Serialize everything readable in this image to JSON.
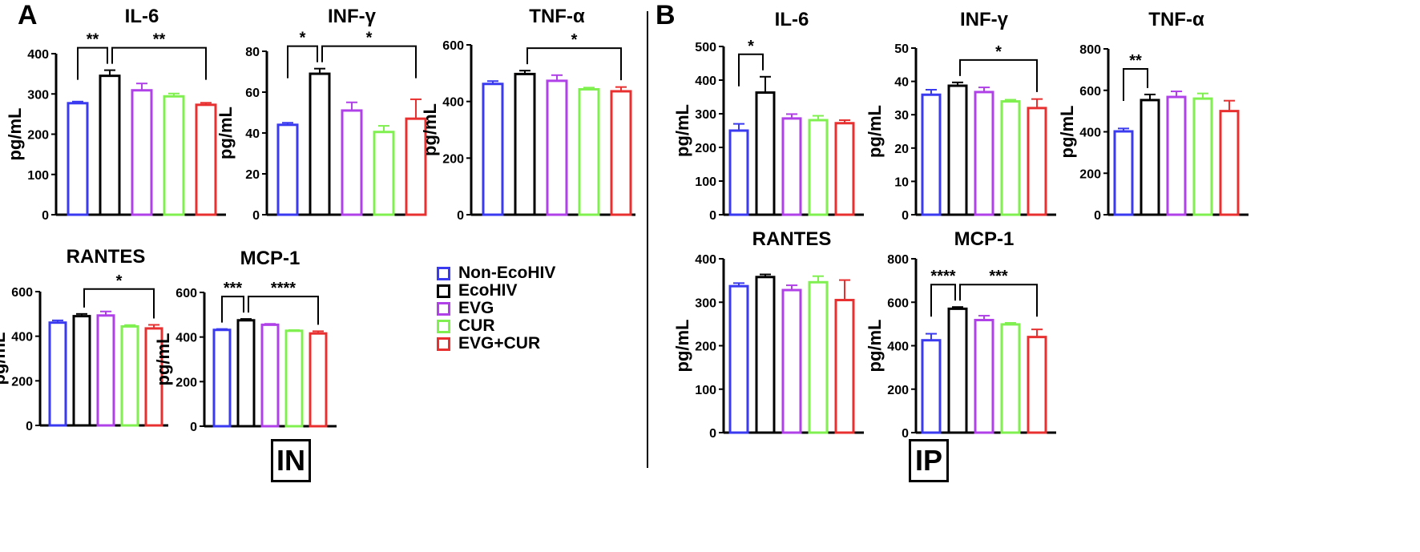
{
  "panel_labels": {
    "a": "A",
    "b": "B"
  },
  "region_labels": {
    "a": "IN",
    "b": "IP"
  },
  "groups": [
    "Non-EcoHIV",
    "EcoHIV",
    "EVG",
    "CUR",
    "EVG+CUR"
  ],
  "colors": [
    "#3a3af0",
    "#000000",
    "#b040e8",
    "#80f050",
    "#e83030"
  ],
  "chart_data": [
    {
      "type": "bar",
      "panel": "A",
      "title": "IL-6",
      "ylabel": "pg/mL",
      "ylim": [
        0,
        400
      ],
      "yticks": [
        0,
        100,
        200,
        300,
        400
      ],
      "categories": [
        "Non-EcoHIV",
        "EcoHIV",
        "EVG",
        "CUR",
        "EVG+CUR"
      ],
      "values": [
        277,
        345,
        309,
        294,
        273
      ],
      "errors": [
        4,
        14,
        17,
        7,
        5
      ],
      "significance": [
        {
          "from": 0,
          "to": 1,
          "label": "**"
        },
        {
          "from": 1,
          "to": 4,
          "label": "**"
        }
      ]
    },
    {
      "type": "bar",
      "panel": "A",
      "title": "INF-γ",
      "ylabel": "pg/mL",
      "ylim": [
        0,
        80
      ],
      "yticks": [
        0,
        20,
        40,
        60,
        80
      ],
      "categories": [
        "Non-EcoHIV",
        "EcoHIV",
        "EVG",
        "CUR",
        "EVG+CUR"
      ],
      "values": [
        44,
        69,
        51,
        40.5,
        47
      ],
      "errors": [
        1,
        2.5,
        4,
        3,
        9.5
      ],
      "significance": [
        {
          "from": 0,
          "to": 1,
          "label": "*"
        },
        {
          "from": 1,
          "to": 4,
          "label": "*"
        }
      ]
    },
    {
      "type": "bar",
      "panel": "A",
      "title": "TNF-α",
      "ylabel": "pg/mL",
      "ylim": [
        0,
        600
      ],
      "yticks": [
        0,
        200,
        400,
        600
      ],
      "categories": [
        "Non-EcoHIV",
        "EcoHIV",
        "EVG",
        "CUR",
        "EVG+CUR"
      ],
      "values": [
        462,
        497,
        473,
        443,
        436
      ],
      "errors": [
        10,
        12,
        20,
        6,
        15
      ],
      "significance": [
        {
          "from": 1,
          "to": 4,
          "label": "*"
        }
      ]
    },
    {
      "type": "bar",
      "panel": "A",
      "title": "RANTES",
      "ylabel": "pg/mL",
      "ylim": [
        0,
        600
      ],
      "yticks": [
        0,
        200,
        400,
        600
      ],
      "categories": [
        "Non-EcoHIV",
        "EcoHIV",
        "EVG",
        "CUR",
        "EVG+CUR"
      ],
      "values": [
        461,
        490,
        493,
        444,
        435
      ],
      "errors": [
        10,
        10,
        18,
        6,
        16
      ],
      "significance": [
        {
          "from": 1,
          "to": 4,
          "label": "*"
        }
      ]
    },
    {
      "type": "bar",
      "panel": "A",
      "title": "MCP-1",
      "ylabel": "pg/mL",
      "ylim": [
        0,
        600
      ],
      "yticks": [
        0,
        200,
        400,
        600
      ],
      "categories": [
        "Non-EcoHIV",
        "EcoHIV",
        "EVG",
        "CUR",
        "EVG+CUR"
      ],
      "values": [
        432,
        475,
        455,
        428,
        416
      ],
      "errors": [
        4,
        6,
        4,
        3,
        10
      ],
      "significance": [
        {
          "from": 0,
          "to": 1,
          "label": "***"
        },
        {
          "from": 1,
          "to": 4,
          "label": "****"
        }
      ]
    },
    {
      "type": "bar",
      "panel": "B",
      "title": "IL-6",
      "ylabel": "pg/mL",
      "ylim": [
        0,
        500
      ],
      "yticks": [
        0,
        100,
        200,
        300,
        400,
        500
      ],
      "categories": [
        "Non-EcoHIV",
        "EcoHIV",
        "EVG",
        "CUR",
        "EVG+CUR"
      ],
      "values": [
        250,
        363,
        286,
        281,
        272
      ],
      "errors": [
        20,
        47,
        13,
        13,
        9
      ],
      "significance": [
        {
          "from": 0,
          "to": 1,
          "label": "*"
        }
      ]
    },
    {
      "type": "bar",
      "panel": "B",
      "title": "INF-γ",
      "ylabel": "pg/mL",
      "ylim": [
        0,
        50
      ],
      "yticks": [
        0,
        10,
        20,
        30,
        40,
        50
      ],
      "categories": [
        "Non-EcoHIV",
        "EcoHIV",
        "EVG",
        "CUR",
        "EVG+CUR"
      ],
      "values": [
        36,
        38.7,
        36.8,
        34,
        32
      ],
      "errors": [
        1.5,
        1,
        1.4,
        0.5,
        2.7
      ],
      "significance": [
        {
          "from": 1,
          "to": 4,
          "label": "*"
        }
      ]
    },
    {
      "type": "bar",
      "panel": "B",
      "title": "TNF-α",
      "ylabel": "pg/mL",
      "ylim": [
        0,
        800
      ],
      "yticks": [
        0,
        200,
        400,
        600,
        800
      ],
      "categories": [
        "Non-EcoHIV",
        "EcoHIV",
        "EVG",
        "CUR",
        "EVG+CUR"
      ],
      "values": [
        402,
        553,
        568,
        560,
        500
      ],
      "errors": [
        14,
        27,
        27,
        25,
        50
      ],
      "significance": [
        {
          "from": 0,
          "to": 1,
          "label": "**"
        }
      ]
    },
    {
      "type": "bar",
      "panel": "B",
      "title": "RANTES",
      "ylabel": "pg/mL",
      "ylim": [
        0,
        400
      ],
      "yticks": [
        0,
        100,
        200,
        300,
        400
      ],
      "categories": [
        "Non-EcoHIV",
        "EcoHIV",
        "EVG",
        "CUR",
        "EVG+CUR"
      ],
      "values": [
        337,
        358,
        328,
        346,
        305
      ],
      "errors": [
        7,
        6,
        11,
        14,
        46
      ],
      "significance": []
    },
    {
      "type": "bar",
      "panel": "B",
      "title": "MCP-1",
      "ylabel": "pg/mL",
      "ylim": [
        0,
        800
      ],
      "yticks": [
        0,
        200,
        400,
        600,
        800
      ],
      "categories": [
        "Non-EcoHIV",
        "EcoHIV",
        "EVG",
        "CUR",
        "EVG+CUR"
      ],
      "values": [
        425,
        570,
        518,
        498,
        440
      ],
      "errors": [
        30,
        8,
        20,
        7,
        35
      ],
      "significance": [
        {
          "from": 0,
          "to": 1,
          "label": "****"
        },
        {
          "from": 1,
          "to": 4,
          "label": "***"
        }
      ]
    }
  ]
}
